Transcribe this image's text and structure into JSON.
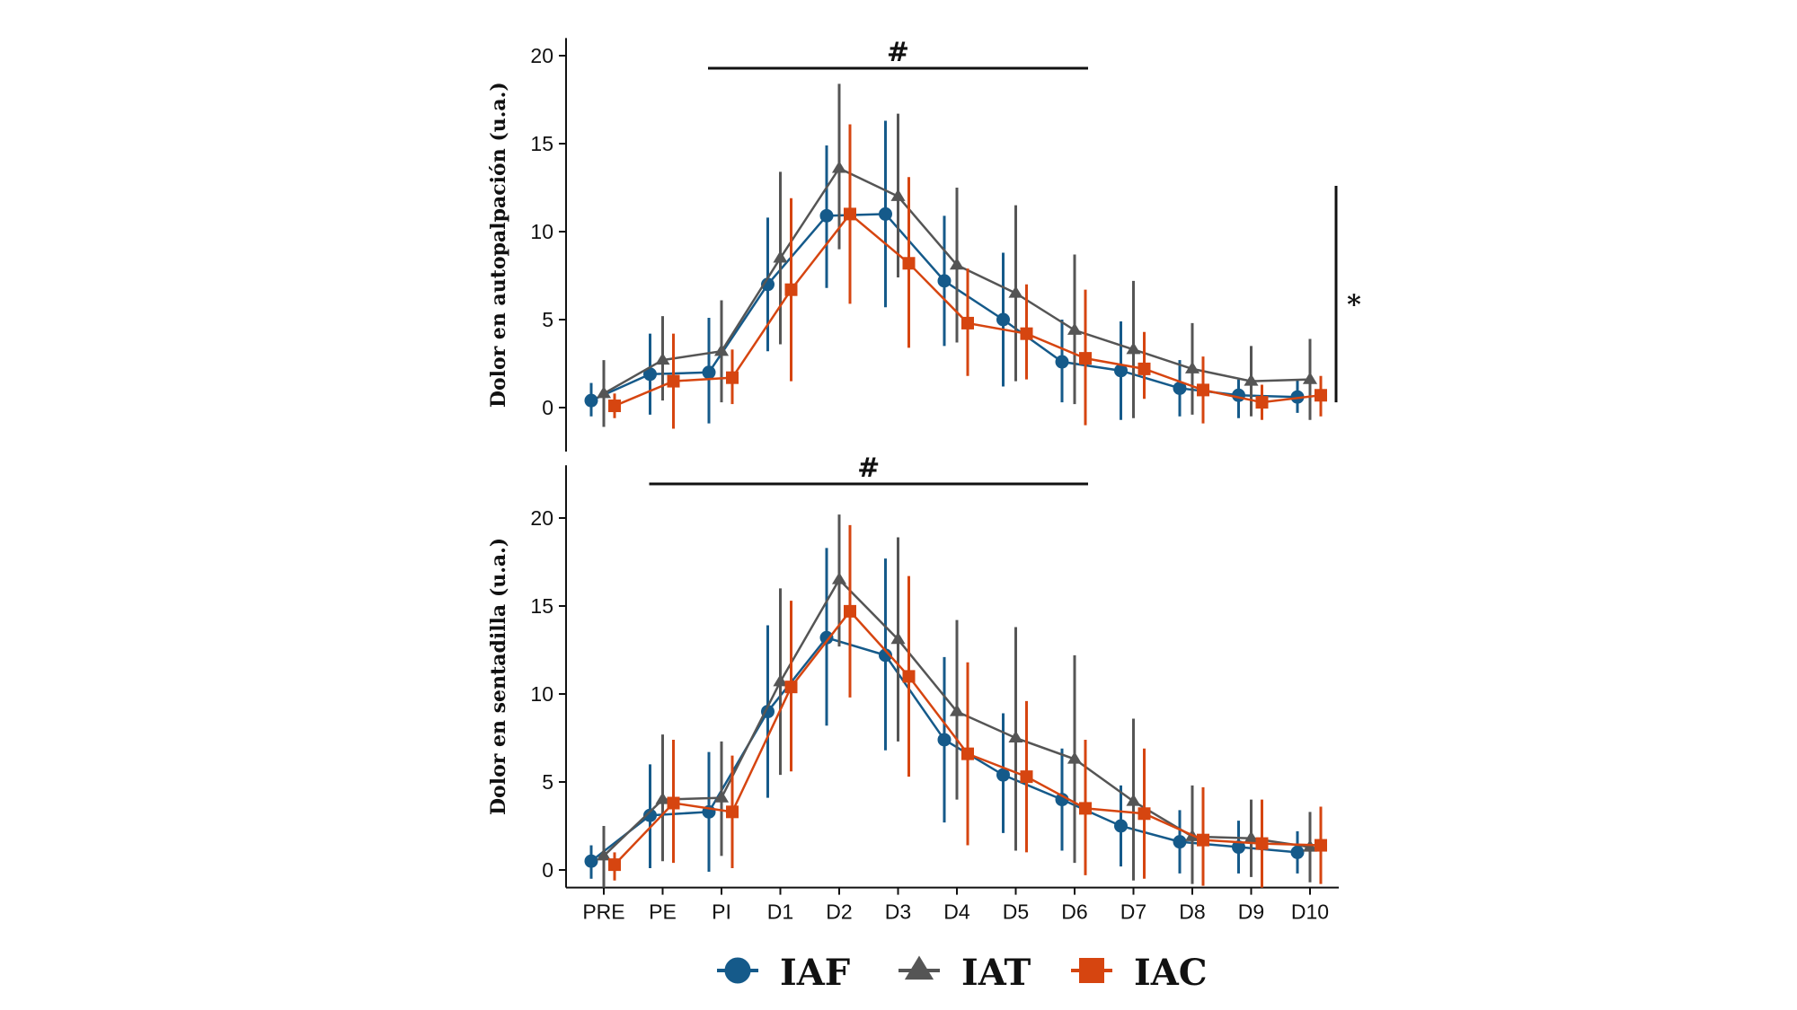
{
  "chart_data": [
    {
      "type": "line",
      "ylabel": "Dolor en autopalpación (u.a.)",
      "ylim": [
        -2.5,
        21
      ],
      "yticks": [
        0,
        5,
        10,
        15,
        20
      ],
      "categories": [
        "PRE",
        "PE",
        "PI",
        "D1",
        "D2",
        "D3",
        "D4",
        "D5",
        "D6",
        "D7",
        "D8",
        "D9",
        "D10"
      ],
      "show_x_ticks": false,
      "annotations": {
        "hash": "#",
        "hash_span": [
          "PI",
          "D6"
        ],
        "star": "*",
        "star_range": [
          0.3,
          12.6
        ]
      },
      "series": [
        {
          "name": "IAF",
          "marker": "circle",
          "color": "#155a8a",
          "values": [
            0.4,
            1.9,
            2.0,
            7.0,
            10.9,
            11.0,
            7.2,
            5.0,
            2.6,
            2.1,
            1.1,
            0.7,
            0.6
          ],
          "err_low": [
            -0.5,
            -0.4,
            -0.9,
            3.2,
            6.8,
            5.7,
            3.5,
            1.2,
            0.3,
            -0.7,
            -0.5,
            -0.6,
            -0.3
          ],
          "err_high": [
            1.4,
            4.2,
            5.1,
            10.8,
            14.9,
            16.3,
            10.9,
            8.8,
            5.0,
            4.9,
            2.7,
            1.6,
            1.6
          ]
        },
        {
          "name": "IAT",
          "marker": "triangle",
          "color": "#555555",
          "values": [
            0.8,
            2.7,
            3.2,
            8.5,
            13.6,
            12.0,
            8.1,
            6.5,
            4.4,
            3.3,
            2.2,
            1.5,
            1.6
          ],
          "err_low": [
            -1.1,
            0.4,
            0.3,
            3.6,
            9.0,
            7.4,
            3.7,
            1.5,
            0.2,
            -0.6,
            -0.4,
            -0.5,
            -0.7
          ],
          "err_high": [
            2.7,
            5.2,
            6.1,
            13.4,
            18.4,
            16.7,
            12.5,
            11.5,
            8.7,
            7.2,
            4.8,
            3.5,
            3.9
          ]
        },
        {
          "name": "IAC",
          "marker": "square",
          "color": "#d64510",
          "values": [
            0.1,
            1.5,
            1.7,
            6.7,
            11.0,
            8.2,
            4.8,
            4.2,
            2.8,
            2.2,
            1.0,
            0.3,
            0.7
          ],
          "err_low": [
            -0.6,
            -1.2,
            0.2,
            1.5,
            5.9,
            3.4,
            1.8,
            1.6,
            -1.0,
            0.5,
            -0.9,
            -0.7,
            -0.5
          ],
          "err_high": [
            0.8,
            4.2,
            3.3,
            11.9,
            16.1,
            13.1,
            7.9,
            7.0,
            6.7,
            4.3,
            2.9,
            1.3,
            1.8
          ]
        }
      ]
    },
    {
      "type": "line",
      "ylabel": "Dolor en sentadilla (u.a.)",
      "ylim": [
        -1,
        23
      ],
      "yticks": [
        0,
        5,
        10,
        15,
        20
      ],
      "categories": [
        "PRE",
        "PE",
        "PI",
        "D1",
        "D2",
        "D3",
        "D4",
        "D5",
        "D6",
        "D7",
        "D8",
        "D9",
        "D10"
      ],
      "show_x_ticks": true,
      "annotations": {
        "hash": "#",
        "hash_span": [
          "PE",
          "D6"
        ]
      },
      "series": [
        {
          "name": "IAF",
          "marker": "circle",
          "color": "#155a8a",
          "values": [
            0.5,
            3.1,
            3.3,
            9.0,
            13.2,
            12.2,
            7.4,
            5.4,
            4.0,
            2.5,
            1.6,
            1.3,
            1.0
          ],
          "err_low": [
            -0.5,
            0.1,
            -0.1,
            4.1,
            8.2,
            6.8,
            2.7,
            2.1,
            1.1,
            0.2,
            -0.2,
            -0.2,
            -0.2
          ],
          "err_high": [
            1.4,
            6.0,
            6.7,
            13.9,
            18.3,
            17.7,
            12.1,
            8.9,
            6.9,
            4.8,
            3.4,
            2.8,
            2.2
          ]
        },
        {
          "name": "IAT",
          "marker": "triangle",
          "color": "#555555",
          "values": [
            0.8,
            4.0,
            4.1,
            10.7,
            16.5,
            13.1,
            9.0,
            7.5,
            6.3,
            3.9,
            1.9,
            1.8,
            1.3
          ],
          "err_low": [
            -1.0,
            0.5,
            0.8,
            5.4,
            12.7,
            7.3,
            4.0,
            1.1,
            0.4,
            -0.6,
            -0.8,
            -0.4,
            -0.7
          ],
          "err_high": [
            2.5,
            7.7,
            7.3,
            16.0,
            20.2,
            18.9,
            14.2,
            13.8,
            12.2,
            8.6,
            4.8,
            4.0,
            3.3
          ]
        },
        {
          "name": "IAC",
          "marker": "square",
          "color": "#d64510",
          "values": [
            0.3,
            3.8,
            3.3,
            10.4,
            14.7,
            11.0,
            6.6,
            5.3,
            3.5,
            3.2,
            1.7,
            1.5,
            1.4
          ],
          "err_low": [
            -0.6,
            0.4,
            0.1,
            5.6,
            9.8,
            5.3,
            1.4,
            1.0,
            -0.3,
            -0.5,
            -0.9,
            -1.0,
            -0.8
          ],
          "err_high": [
            1.0,
            7.4,
            6.5,
            15.3,
            19.6,
            16.7,
            11.8,
            9.6,
            7.4,
            6.9,
            4.7,
            4.0,
            3.6
          ]
        }
      ]
    }
  ],
  "legend": {
    "items": [
      {
        "label": "IAF",
        "marker": "circle",
        "color": "#155a8a"
      },
      {
        "label": "IAT",
        "marker": "triangle",
        "color": "#555555"
      },
      {
        "label": "IAC",
        "marker": "square",
        "color": "#d64510"
      }
    ]
  }
}
